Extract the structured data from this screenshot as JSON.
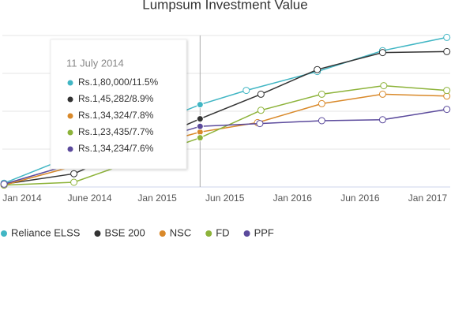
{
  "chart_data": {
    "type": "line",
    "title": "Lumpsum Investment Value",
    "xlim": [
      -1.75,
      38
    ],
    "xticks": [
      {
        "value": 0,
        "label": "Jan 2014"
      },
      {
        "value": 6,
        "label": "June 2014"
      },
      {
        "value": 12,
        "label": "Jan 2015"
      },
      {
        "value": 18,
        "label": "Jun 2015"
      },
      {
        "value": 24,
        "label": "Jan 2016"
      },
      {
        "value": 30,
        "label": "Jun 2016"
      },
      {
        "value": 36,
        "label": "Jan 2017"
      }
    ],
    "ylim": [
      100000,
      260000
    ],
    "yticks": [
      100000,
      140000,
      180000,
      220000,
      260000
    ],
    "grid": true,
    "crosshair_x": 15.8,
    "series": [
      {
        "name": "Reliance ELSS",
        "color": "#41b6c4",
        "x": [
          -1.6,
          15.8,
          19.9,
          26.2,
          32,
          37.7
        ],
        "values": [
          104000,
          187000,
          202000,
          222000,
          244000,
          258000
        ]
      },
      {
        "name": "BSE 200",
        "color": "#333333",
        "x": [
          -1.6,
          4.6,
          15.8,
          21.2,
          26.2,
          32,
          37.7
        ],
        "values": [
          103000,
          114000,
          172000,
          198000,
          224000,
          242000,
          243000
        ]
      },
      {
        "name": "NSC",
        "color": "#d9892a",
        "x": [
          -1.6,
          15.8,
          20.9,
          26.6,
          32,
          37.7
        ],
        "values": [
          102000,
          158000,
          168000,
          188000,
          198000,
          196000
        ]
      },
      {
        "name": "FD",
        "color": "#8db33a",
        "x": [
          -1.6,
          4.6,
          15.8,
          21.2,
          26.6,
          32.1,
          37.7
        ],
        "values": [
          102000,
          105000,
          152000,
          181000,
          198000,
          207000,
          202000
        ]
      },
      {
        "name": "PPF",
        "color": "#5b4a9c",
        "x": [
          -1.6,
          15.8,
          21.1,
          26.6,
          32,
          37.7
        ],
        "values": [
          103000,
          164000,
          167000,
          170000,
          171000,
          182000
        ]
      }
    ],
    "tooltip": {
      "title": "11 July 2014",
      "items": [
        "Rs.1,80,000/11.5%",
        "Rs.1,45,282/8.9%",
        "Rs.1,34,324/7.8%",
        "Rs.1,23,435/7.7%",
        "Rs.1,34,234/7.6%"
      ]
    }
  }
}
